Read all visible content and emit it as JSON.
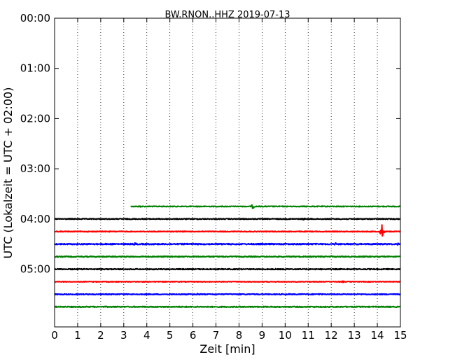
{
  "chart_data": {
    "type": "line",
    "title": "BW.RNON..HHZ 2019-07-13",
    "xlabel": "Zeit  [min]",
    "ylabel": "UTC (Lokalzeit = UTC + 02:00)",
    "xlim": [
      0,
      15
    ],
    "ylim": [
      0,
      6.15
    ],
    "x_ticks": [
      "0",
      "1",
      "2",
      "3",
      "4",
      "5",
      "6",
      "7",
      "8",
      "9",
      "10",
      "11",
      "12",
      "13",
      "14",
      "15"
    ],
    "y_ticks": [
      {
        "value": 0,
        "label": "00:00"
      },
      {
        "value": 1,
        "label": "01:00"
      },
      {
        "value": 2,
        "label": "02:00"
      },
      {
        "value": 3,
        "label": "03:00"
      },
      {
        "value": 4,
        "label": "04:00"
      },
      {
        "value": 5,
        "label": "05:00"
      }
    ],
    "grid": "vertical dotted lines at each minute",
    "trace_colors": [
      "#008000",
      "#000000",
      "#ff0000",
      "#0000ff"
    ],
    "traces": [
      {
        "start": 3.75,
        "x_start": 3.3,
        "x_end": 15,
        "color": "#008000",
        "amp": 0.008,
        "events": [
          {
            "x": 3.7,
            "amp": 0.02
          },
          {
            "x": 8.6,
            "amp": 0.045
          }
        ]
      },
      {
        "start": 4.0,
        "x_start": 0,
        "x_end": 15,
        "color": "#000000",
        "amp": 0.009,
        "events": [
          {
            "x": 10.8,
            "amp": 0.02
          }
        ]
      },
      {
        "start": 4.25,
        "x_start": 0,
        "x_end": 15,
        "color": "#ff0000",
        "amp": 0.008,
        "events": [
          {
            "x": 14.2,
            "amp": 0.14
          }
        ]
      },
      {
        "start": 4.5,
        "x_start": 0,
        "x_end": 15,
        "color": "#0000ff",
        "amp": 0.012,
        "events": [
          {
            "x": 3.5,
            "amp": 0.03
          },
          {
            "x": 12.2,
            "amp": 0.03
          },
          {
            "x": 14.9,
            "amp": 0.025
          }
        ]
      },
      {
        "start": 4.75,
        "x_start": 0,
        "x_end": 15,
        "color": "#008000",
        "amp": 0.01,
        "events": [
          {
            "x": 12.0,
            "amp": 0.02
          }
        ]
      },
      {
        "start": 5.0,
        "x_start": 0,
        "x_end": 15,
        "color": "#000000",
        "amp": 0.01,
        "events": [
          {
            "x": 2.0,
            "amp": 0.02
          },
          {
            "x": 8.0,
            "amp": 0.015
          }
        ]
      },
      {
        "start": 5.25,
        "x_start": 0,
        "x_end": 15,
        "color": "#ff0000",
        "amp": 0.007,
        "events": [
          {
            "x": 12.5,
            "amp": 0.018
          }
        ]
      },
      {
        "start": 5.5,
        "x_start": 0,
        "x_end": 15,
        "color": "#0000ff",
        "amp": 0.009,
        "events": [
          {
            "x": 6.2,
            "amp": 0.025
          },
          {
            "x": 11.5,
            "amp": 0.02
          }
        ]
      },
      {
        "start": 5.75,
        "x_start": 0,
        "x_end": 15,
        "color": "#008000",
        "amp": 0.01,
        "events": []
      }
    ]
  }
}
